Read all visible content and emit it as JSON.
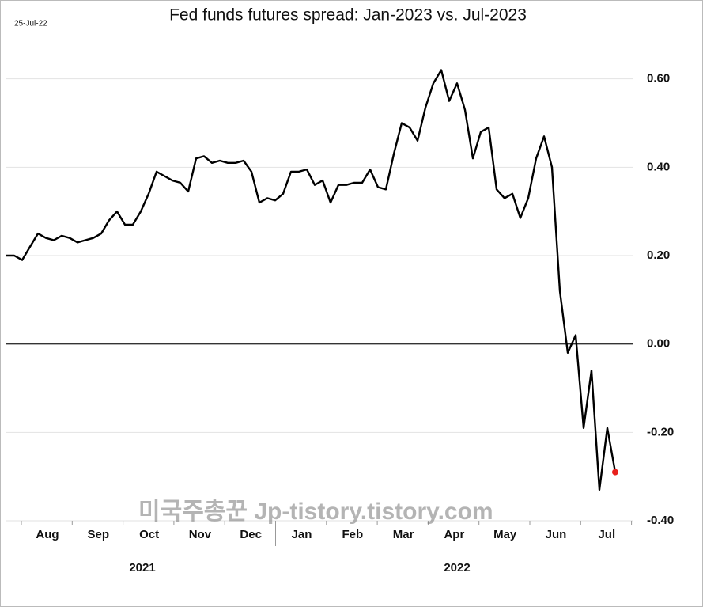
{
  "chart_data": {
    "type": "line",
    "title": "Fed funds futures spread: Jan-2023 vs. Jul-2023",
    "date_label": "25-Jul-22",
    "watermark": "미국주총꾼 Jp-tistory.tistory.com",
    "months": [
      "Aug",
      "Sep",
      "Oct",
      "Nov",
      "Dec",
      "Jan",
      "Feb",
      "Mar",
      "Apr",
      "May",
      "Jun",
      "Jul"
    ],
    "years": [
      "2021",
      "2022"
    ],
    "series": [
      {
        "color": "#000000",
        "last_point_color": "#e8201c",
        "values": [
          0.2,
          0.2,
          0.19,
          0.22,
          0.25,
          0.24,
          0.235,
          0.245,
          0.24,
          0.23,
          0.235,
          0.24,
          0.25,
          0.28,
          0.3,
          0.27,
          0.27,
          0.3,
          0.34,
          0.39,
          0.38,
          0.37,
          0.365,
          0.345,
          0.42,
          0.425,
          0.41,
          0.415,
          0.41,
          0.41,
          0.415,
          0.39,
          0.32,
          0.33,
          0.325,
          0.34,
          0.39,
          0.39,
          0.395,
          0.36,
          0.37,
          0.32,
          0.36,
          0.36,
          0.365,
          0.365,
          0.395,
          0.355,
          0.35,
          0.43,
          0.5,
          0.49,
          0.46,
          0.535,
          0.59,
          0.62,
          0.55,
          0.59,
          0.53,
          0.42,
          0.48,
          0.49,
          0.35,
          0.33,
          0.34,
          0.285,
          0.33,
          0.42,
          0.47,
          0.4,
          0.12,
          -0.02,
          0.02,
          -0.19,
          -0.06,
          -0.33,
          -0.19,
          -0.29
        ]
      }
    ],
    "ylim": [
      -0.4,
      0.68
    ],
    "yticks": [
      {
        "value": 0.6,
        "label": "0.60"
      },
      {
        "value": 0.4,
        "label": "0.40"
      },
      {
        "value": 0.2,
        "label": "0.20"
      },
      {
        "value": 0,
        "label": "0.00"
      },
      {
        "value": -0.2,
        "label": "-0.20"
      },
      {
        "value": -0.4,
        "label": "-0.40"
      }
    ],
    "grid": true
  }
}
